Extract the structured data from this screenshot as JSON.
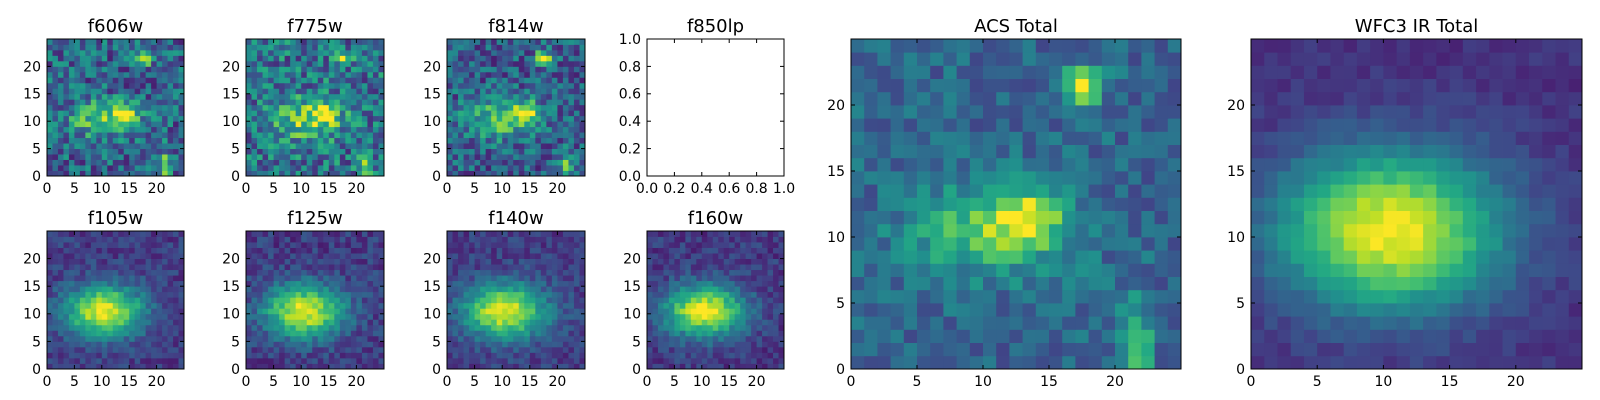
{
  "chart_data": [
    {
      "type": "heatmap",
      "title": "f606w",
      "xlabel": "",
      "ylabel": "",
      "xlim": [
        0,
        25
      ],
      "ylim": [
        0,
        25
      ],
      "xticks": [
        "0",
        "5",
        "10",
        "15",
        "20"
      ],
      "yticks": [
        "0",
        "5",
        "10",
        "15",
        "20"
      ],
      "size": 25,
      "noise": 0.24,
      "seed": 11,
      "base": 0.32,
      "sources": [
        {
          "x": 9,
          "y": 10,
          "sx": 4.2,
          "sy": 2.4,
          "a": 0.38
        },
        {
          "x": 14,
          "y": 11,
          "sx": 1.6,
          "sy": 1.4,
          "a": 0.55
        },
        {
          "x": 17,
          "y": 21,
          "sx": 1.0,
          "sy": 0.9,
          "a": 0.7
        },
        {
          "x": 21,
          "y": 1,
          "sx": 0.8,
          "sy": 2.2,
          "a": 0.45
        }
      ],
      "grid": false
    },
    {
      "type": "heatmap",
      "title": "f775w",
      "xlabel": "",
      "ylabel": "",
      "xlim": [
        0,
        25
      ],
      "ylim": [
        0,
        25
      ],
      "xticks": [
        "0",
        "5",
        "10",
        "15",
        "20"
      ],
      "yticks": [
        "0",
        "5",
        "10",
        "15",
        "20"
      ],
      "size": 25,
      "noise": 0.26,
      "seed": 23,
      "base": 0.38,
      "sources": [
        {
          "x": 10,
          "y": 10,
          "sx": 4.5,
          "sy": 2.6,
          "a": 0.4
        },
        {
          "x": 14,
          "y": 11,
          "sx": 1.6,
          "sy": 1.4,
          "a": 0.45
        },
        {
          "x": 17,
          "y": 21,
          "sx": 1.0,
          "sy": 0.9,
          "a": 0.55
        },
        {
          "x": 21,
          "y": 1,
          "sx": 0.8,
          "sy": 2.2,
          "a": 0.45
        }
      ],
      "grid": false
    },
    {
      "type": "heatmap",
      "title": "f814w",
      "xlabel": "",
      "ylabel": "",
      "xlim": [
        0,
        25
      ],
      "ylim": [
        0,
        25
      ],
      "xticks": [
        "0",
        "5",
        "10",
        "15",
        "20"
      ],
      "yticks": [
        "0",
        "5",
        "10",
        "15",
        "20"
      ],
      "size": 25,
      "noise": 0.22,
      "seed": 37,
      "base": 0.3,
      "sources": [
        {
          "x": 9,
          "y": 10,
          "sx": 4.4,
          "sy": 2.5,
          "a": 0.42
        },
        {
          "x": 14,
          "y": 11,
          "sx": 1.6,
          "sy": 1.4,
          "a": 0.55
        },
        {
          "x": 17,
          "y": 21,
          "sx": 1.0,
          "sy": 0.9,
          "a": 0.75
        },
        {
          "x": 21,
          "y": 1,
          "sx": 0.8,
          "sy": 2.2,
          "a": 0.4
        }
      ],
      "grid": false
    },
    {
      "type": "empty",
      "title": "f850lp",
      "xlabel": "",
      "ylabel": "",
      "xlim": [
        0,
        1
      ],
      "ylim": [
        0,
        1
      ],
      "xticks": [
        "0.0",
        "0.2",
        "0.4",
        "0.6",
        "0.8",
        "1.0"
      ],
      "yticks": [
        "0.0",
        "0.2",
        "0.4",
        "0.6",
        "0.8",
        "1.0"
      ],
      "grid": false
    },
    {
      "type": "heatmap",
      "title": "ACS Total",
      "xlabel": "",
      "ylabel": "",
      "xlim": [
        0,
        25
      ],
      "ylim": [
        0,
        25
      ],
      "xticks": [
        "0",
        "5",
        "10",
        "15",
        "20"
      ],
      "yticks": [
        "0",
        "5",
        "10",
        "15",
        "20"
      ],
      "size": 25,
      "noise": 0.13,
      "seed": 53,
      "base": 0.33,
      "sources": [
        {
          "x": 10,
          "y": 10,
          "sx": 4.2,
          "sy": 2.3,
          "a": 0.42
        },
        {
          "x": 13,
          "y": 11,
          "sx": 1.7,
          "sy": 1.5,
          "a": 0.4
        },
        {
          "x": 17,
          "y": 21,
          "sx": 1.0,
          "sy": 0.9,
          "a": 0.7
        },
        {
          "x": 21,
          "y": 1,
          "sx": 0.8,
          "sy": 2.6,
          "a": 0.45
        }
      ],
      "grid": false
    },
    {
      "type": "heatmap",
      "title": "WFC3 IR Total",
      "xlabel": "",
      "ylabel": "",
      "xlim": [
        0,
        25
      ],
      "ylim": [
        0,
        25
      ],
      "xticks": [
        "0",
        "5",
        "10",
        "15",
        "20"
      ],
      "yticks": [
        "0",
        "5",
        "10",
        "15",
        "20"
      ],
      "size": 25,
      "noise": 0.05,
      "seed": 71,
      "base": 0.14,
      "sources": [
        {
          "x": 10,
          "y": 10,
          "sx": 6.0,
          "sy": 4.2,
          "a": 0.85
        }
      ],
      "grid": false
    },
    {
      "type": "heatmap",
      "title": "f105w",
      "xlabel": "",
      "ylabel": "",
      "xlim": [
        0,
        25
      ],
      "ylim": [
        0,
        25
      ],
      "xticks": [
        "0",
        "5",
        "10",
        "15",
        "20"
      ],
      "yticks": [
        "0",
        "5",
        "10",
        "15",
        "20"
      ],
      "size": 25,
      "noise": 0.1,
      "seed": 83,
      "base": 0.18,
      "sources": [
        {
          "x": 10,
          "y": 10,
          "sx": 5.0,
          "sy": 3.2,
          "a": 0.8
        }
      ],
      "grid": false
    },
    {
      "type": "heatmap",
      "title": "f125w",
      "xlabel": "",
      "ylabel": "",
      "xlim": [
        0,
        25
      ],
      "ylim": [
        0,
        25
      ],
      "xticks": [
        "0",
        "5",
        "10",
        "15",
        "20"
      ],
      "yticks": [
        "0",
        "5",
        "10",
        "15",
        "20"
      ],
      "size": 25,
      "noise": 0.11,
      "seed": 97,
      "base": 0.18,
      "sources": [
        {
          "x": 10,
          "y": 10,
          "sx": 5.0,
          "sy": 3.3,
          "a": 0.78
        }
      ],
      "grid": false
    },
    {
      "type": "heatmap",
      "title": "f140w",
      "xlabel": "",
      "ylabel": "",
      "xlim": [
        0,
        25
      ],
      "ylim": [
        0,
        25
      ],
      "xticks": [
        "0",
        "5",
        "10",
        "15",
        "20"
      ],
      "yticks": [
        "0",
        "5",
        "10",
        "15",
        "20"
      ],
      "size": 25,
      "noise": 0.1,
      "seed": 109,
      "base": 0.18,
      "sources": [
        {
          "x": 10,
          "y": 10,
          "sx": 5.2,
          "sy": 3.4,
          "a": 0.8
        }
      ],
      "grid": false
    },
    {
      "type": "heatmap",
      "title": "f160w",
      "xlabel": "",
      "ylabel": "",
      "xlim": [
        0,
        25
      ],
      "ylim": [
        0,
        25
      ],
      "xticks": [
        "0",
        "5",
        "10",
        "15",
        "20"
      ],
      "yticks": [
        "0",
        "5",
        "10",
        "15",
        "20"
      ],
      "size": 25,
      "noise": 0.1,
      "seed": 127,
      "base": 0.17,
      "sources": [
        {
          "x": 10,
          "y": 10,
          "sx": 5.0,
          "sy": 3.2,
          "a": 0.82
        }
      ],
      "grid": false
    }
  ],
  "colormap": "viridis"
}
